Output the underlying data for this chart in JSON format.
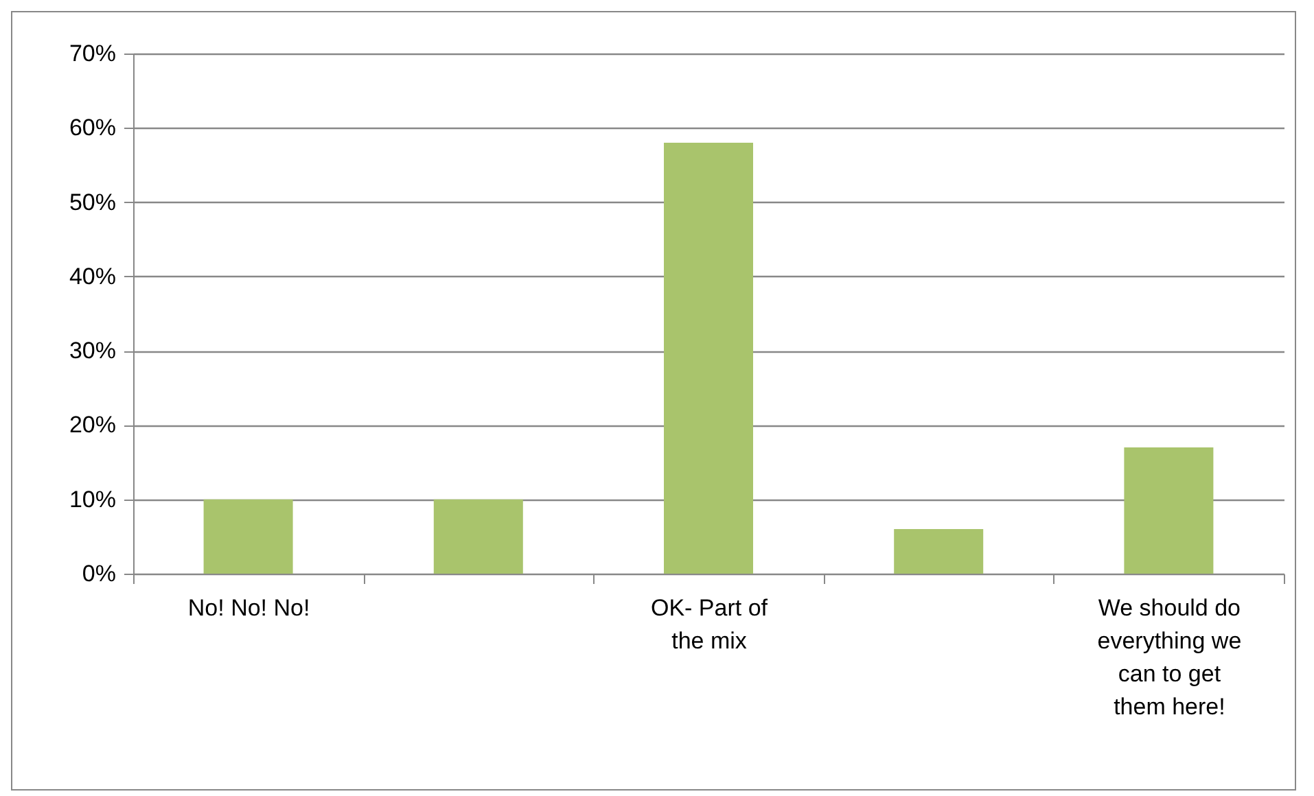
{
  "chart_data": {
    "type": "bar",
    "categories": [
      "No! No! No!",
      null,
      "OK- Part of the mix",
      null,
      "We should do everything we can to get them here!"
    ],
    "values": [
      10,
      10,
      58,
      6,
      17
    ],
    "color": "#a9c46c",
    "ylim": [
      0,
      70
    ],
    "yticks": [
      {
        "value": 0,
        "label": "0%"
      },
      {
        "value": 10,
        "label": "10%"
      },
      {
        "value": 20,
        "label": "20%"
      },
      {
        "value": 30,
        "label": "30%"
      },
      {
        "value": 40,
        "label": "40%"
      },
      {
        "value": 50,
        "label": "50%"
      },
      {
        "value": 60,
        "label": "60%"
      },
      {
        "value": 70,
        "label": "70%"
      }
    ],
    "grid": "y"
  }
}
